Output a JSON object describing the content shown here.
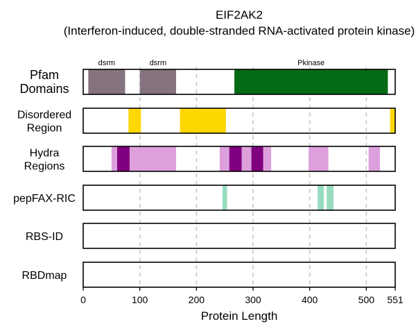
{
  "chart_data": {
    "type": "bar",
    "title": "EIF2AK2",
    "subtitle": "(Interferon-induced, double-stranded RNA-activated protein kinase)",
    "xlabel": "Protein Length",
    "xlim": [
      0,
      551
    ],
    "xticks": [
      0,
      100,
      200,
      300,
      400,
      500,
      551
    ],
    "grid": "vertical dashed at 100, 200, 300, 400, 500",
    "rows": [
      {
        "label": "Pfam Domains",
        "segments": [
          {
            "start": 9,
            "end": 74,
            "color": "#85737f",
            "label": "dsrm"
          },
          {
            "start": 100,
            "end": 164,
            "color": "#85737f",
            "label": "dsrm"
          },
          {
            "start": 267,
            "end": 538,
            "color": "#056b14",
            "label": "Pkinase"
          }
        ]
      },
      {
        "label": "Disordered Region",
        "segments": [
          {
            "start": 80,
            "end": 102,
            "color": "#ffd700"
          },
          {
            "start": 171,
            "end": 252,
            "color": "#ffd700"
          },
          {
            "start": 542,
            "end": 551,
            "color": "#ffd700"
          }
        ]
      },
      {
        "label": "Hydra Regions",
        "segments": [
          {
            "start": 50,
            "end": 60,
            "color": "#dda0dd"
          },
          {
            "start": 60,
            "end": 82,
            "color": "#800080"
          },
          {
            "start": 82,
            "end": 164,
            "color": "#dda0dd"
          },
          {
            "start": 241,
            "end": 258,
            "color": "#dda0dd"
          },
          {
            "start": 258,
            "end": 280,
            "color": "#800080"
          },
          {
            "start": 280,
            "end": 297,
            "color": "#dda0dd"
          },
          {
            "start": 297,
            "end": 318,
            "color": "#800080"
          },
          {
            "start": 318,
            "end": 332,
            "color": "#dda0dd"
          },
          {
            "start": 398,
            "end": 433,
            "color": "#dda0dd"
          },
          {
            "start": 504,
            "end": 524,
            "color": "#dda0dd"
          }
        ]
      },
      {
        "label": "pepFAX-RIC",
        "segments": [
          {
            "start": 246,
            "end": 254,
            "color": "#98dcbf"
          },
          {
            "start": 414,
            "end": 425,
            "color": "#98dcbf"
          },
          {
            "start": 430,
            "end": 442,
            "color": "#98dcbf"
          }
        ]
      },
      {
        "label": "RBS-ID",
        "segments": []
      },
      {
        "label": "RBDmap",
        "segments": []
      }
    ]
  }
}
